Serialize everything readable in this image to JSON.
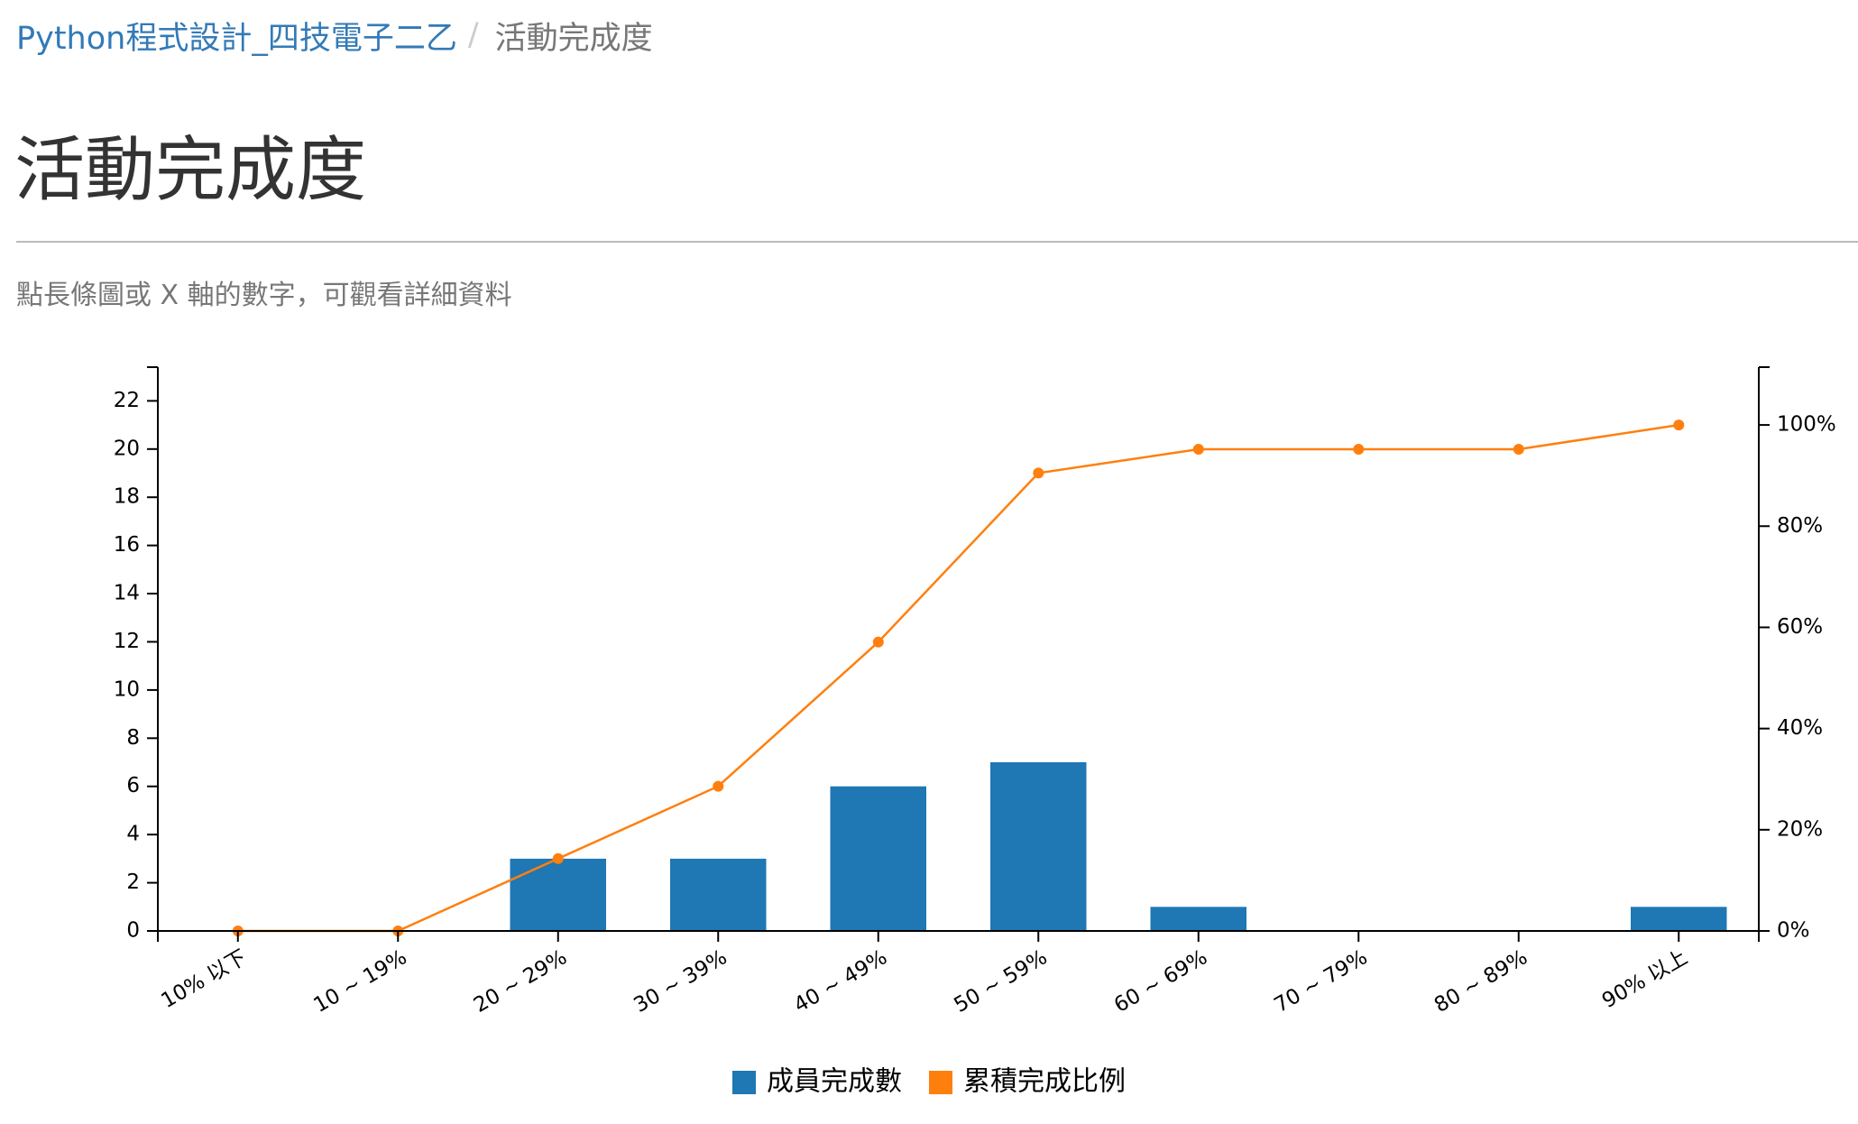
{
  "breadcrumb": {
    "course_link": "Python程式設計_四技電子二乙",
    "separator": "/",
    "current": "活動完成度"
  },
  "page": {
    "title": "活動完成度",
    "hint": "點長條圖或 X 軸的數字，可觀看詳細資料"
  },
  "chart_data": {
    "type": "bar",
    "categories": [
      "10% 以下",
      "10 ~ 19%",
      "20 ~ 29%",
      "30 ~ 39%",
      "40 ~ 49%",
      "50 ~ 59%",
      "60 ~ 69%",
      "70 ~ 79%",
      "80 ~ 89%",
      "90% 以上"
    ],
    "series": [
      {
        "name": "成員完成數",
        "type": "bar",
        "axis": "left",
        "color": "#1f77b4",
        "values": [
          0,
          0,
          3,
          3,
          6,
          7,
          1,
          0,
          0,
          1
        ]
      },
      {
        "name": "累積完成比例",
        "type": "line",
        "axis": "right",
        "color": "#ff7f0e",
        "values": [
          0,
          0,
          14.3,
          28.6,
          57.1,
          90.5,
          95.2,
          95.2,
          95.2,
          100
        ]
      }
    ],
    "y_left": {
      "min": 0,
      "max": 23.1,
      "ticks": [
        0,
        2,
        4,
        6,
        8,
        10,
        12,
        14,
        16,
        18,
        20,
        22
      ],
      "tick_labels": [
        "0",
        "2",
        "4",
        "6",
        "8",
        "10",
        "12",
        "14",
        "16",
        "18",
        "20",
        "22"
      ]
    },
    "y_right": {
      "min": 0,
      "max": 110,
      "ticks": [
        0,
        20,
        40,
        60,
        80,
        100
      ],
      "tick_labels": [
        "0%",
        "20%",
        "40%",
        "60%",
        "80%",
        "100%"
      ]
    },
    "title": "",
    "xlabel": "",
    "ylabel": "",
    "grid": false,
    "legend": "bottom-center"
  }
}
